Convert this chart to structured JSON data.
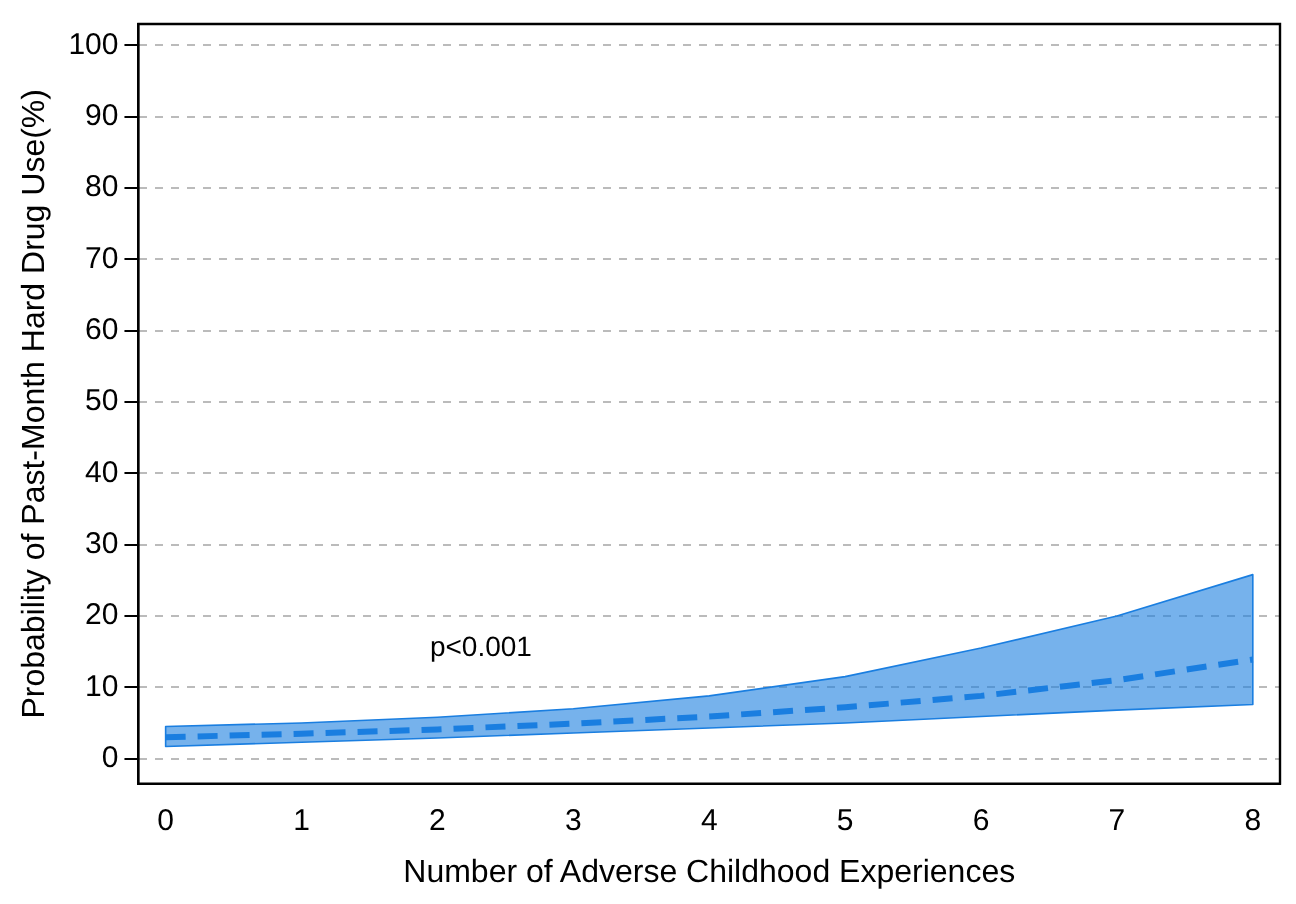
{
  "chart_data": {
    "type": "line",
    "xlabel": "Number of Adverse Childhood Experiences",
    "ylabel": "Probability of Past-Month Hard Drug Use(%)",
    "x": [
      0,
      1,
      2,
      3,
      4,
      5,
      6,
      7,
      8
    ],
    "series": [
      {
        "color": "#1a7ee0",
        "values": [
          3.0,
          3.5,
          4.1,
          4.9,
          5.9,
          7.2,
          8.8,
          11.0,
          13.9
        ],
        "lower": [
          1.7,
          2.3,
          2.9,
          3.6,
          4.3,
          5.0,
          5.9,
          6.8,
          7.6
        ],
        "upper": [
          4.5,
          5.0,
          5.8,
          7.0,
          8.8,
          11.5,
          15.5,
          20.0,
          25.8
        ]
      }
    ],
    "xlim": [
      -0.2,
      8.2
    ],
    "xticks": [
      0,
      1,
      2,
      3,
      4,
      5,
      6,
      7,
      8
    ],
    "ylim": [
      -3.5,
      103
    ],
    "yticks": [
      0,
      10,
      20,
      30,
      40,
      50,
      60,
      70,
      80,
      90,
      100
    ],
    "grid": "y",
    "line_style": "dashed",
    "marker": "none",
    "legend": false,
    "annotations": [
      "p<0.001"
    ]
  }
}
